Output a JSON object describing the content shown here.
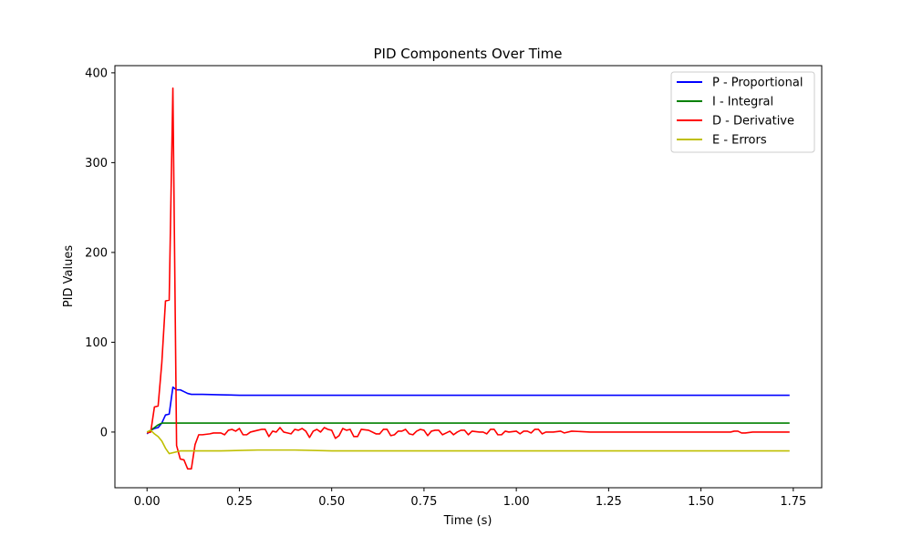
{
  "chart_data": {
    "type": "line",
    "title": "PID Components Over Time",
    "xlabel": "Time (s)",
    "ylabel": "PID Values",
    "xlim": [
      -0.087,
      1.827
    ],
    "ylim": [
      -62,
      408
    ],
    "xticks": [
      0.0,
      0.25,
      0.5,
      0.75,
      1.0,
      1.25,
      1.5,
      1.75
    ],
    "xtick_labels": [
      "0.00",
      "0.25",
      "0.50",
      "0.75",
      "1.00",
      "1.25",
      "1.50",
      "1.75"
    ],
    "yticks": [
      0,
      100,
      200,
      300,
      400
    ],
    "ytick_labels": [
      "0",
      "100",
      "200",
      "300",
      "400"
    ],
    "grid": false,
    "legend_position": "top-right",
    "series": [
      {
        "name": "P - Proportional",
        "color": "#0000ff",
        "points": [
          [
            0,
            -2
          ],
          [
            0.01,
            2
          ],
          [
            0.02,
            4
          ],
          [
            0.03,
            5
          ],
          [
            0.04,
            10
          ],
          [
            0.05,
            19
          ],
          [
            0.06,
            20
          ],
          [
            0.07,
            50
          ],
          [
            0.08,
            47
          ],
          [
            0.09,
            47
          ],
          [
            0.1,
            45
          ],
          [
            0.11,
            43
          ],
          [
            0.12,
            42
          ],
          [
            0.15,
            42
          ],
          [
            0.2,
            41.5
          ],
          [
            0.25,
            41
          ],
          [
            0.3,
            41
          ],
          [
            0.35,
            41
          ],
          [
            0.4,
            41
          ],
          [
            0.5,
            41
          ],
          [
            0.6,
            41
          ],
          [
            0.8,
            41
          ],
          [
            1.0,
            41
          ],
          [
            1.25,
            41
          ],
          [
            1.5,
            41
          ],
          [
            1.74,
            41
          ]
        ]
      },
      {
        "name": "I - Integral",
        "color": "#008000",
        "points": [
          [
            0,
            0
          ],
          [
            0.01,
            2
          ],
          [
            0.02,
            5
          ],
          [
            0.03,
            8
          ],
          [
            0.04,
            10
          ],
          [
            0.06,
            10
          ],
          [
            0.1,
            10
          ],
          [
            0.5,
            10
          ],
          [
            1.0,
            10
          ],
          [
            1.5,
            10
          ],
          [
            1.74,
            10
          ]
        ]
      },
      {
        "name": "D - Derivative",
        "color": "#ff0000",
        "points": [
          [
            0,
            -1
          ],
          [
            0.01,
            0
          ],
          [
            0.02,
            28
          ],
          [
            0.03,
            29
          ],
          [
            0.04,
            77
          ],
          [
            0.05,
            146
          ],
          [
            0.06,
            147
          ],
          [
            0.07,
            383
          ],
          [
            0.08,
            -15
          ],
          [
            0.09,
            -30
          ],
          [
            0.1,
            -31
          ],
          [
            0.11,
            -41
          ],
          [
            0.12,
            -41
          ],
          [
            0.13,
            -14
          ],
          [
            0.14,
            -3
          ],
          [
            0.15,
            -3
          ],
          [
            0.17,
            -2
          ],
          [
            0.18,
            -1
          ],
          [
            0.2,
            -1
          ],
          [
            0.21,
            -3
          ],
          [
            0.22,
            2
          ],
          [
            0.23,
            3
          ],
          [
            0.24,
            1
          ],
          [
            0.25,
            4
          ],
          [
            0.26,
            -3
          ],
          [
            0.27,
            -3
          ],
          [
            0.28,
            0
          ],
          [
            0.3,
            2
          ],
          [
            0.31,
            3
          ],
          [
            0.32,
            3
          ],
          [
            0.33,
            -5
          ],
          [
            0.34,
            1
          ],
          [
            0.35,
            0
          ],
          [
            0.36,
            5
          ],
          [
            0.37,
            0
          ],
          [
            0.38,
            -1
          ],
          [
            0.39,
            -2
          ],
          [
            0.4,
            3
          ],
          [
            0.41,
            2
          ],
          [
            0.42,
            4
          ],
          [
            0.43,
            1
          ],
          [
            0.44,
            -6
          ],
          [
            0.45,
            1
          ],
          [
            0.46,
            3
          ],
          [
            0.47,
            0
          ],
          [
            0.48,
            5
          ],
          [
            0.49,
            3
          ],
          [
            0.5,
            2
          ],
          [
            0.51,
            -7
          ],
          [
            0.52,
            -4
          ],
          [
            0.53,
            4
          ],
          [
            0.54,
            2
          ],
          [
            0.55,
            3
          ],
          [
            0.56,
            -5
          ],
          [
            0.57,
            -5
          ],
          [
            0.58,
            3
          ],
          [
            0.6,
            2
          ],
          [
            0.62,
            -2
          ],
          [
            0.63,
            -2
          ],
          [
            0.64,
            3
          ],
          [
            0.65,
            3
          ],
          [
            0.66,
            -4
          ],
          [
            0.67,
            -3
          ],
          [
            0.68,
            1
          ],
          [
            0.69,
            1
          ],
          [
            0.7,
            3
          ],
          [
            0.71,
            -2
          ],
          [
            0.72,
            -3
          ],
          [
            0.73,
            1
          ],
          [
            0.74,
            3
          ],
          [
            0.75,
            2
          ],
          [
            0.76,
            -4
          ],
          [
            0.77,
            1
          ],
          [
            0.78,
            2
          ],
          [
            0.79,
            2
          ],
          [
            0.8,
            -3
          ],
          [
            0.81,
            -1
          ],
          [
            0.82,
            1
          ],
          [
            0.83,
            -3
          ],
          [
            0.84,
            0
          ],
          [
            0.85,
            2
          ],
          [
            0.86,
            2
          ],
          [
            0.87,
            -3
          ],
          [
            0.88,
            1
          ],
          [
            0.9,
            0
          ],
          [
            0.91,
            0
          ],
          [
            0.92,
            -2
          ],
          [
            0.93,
            3
          ],
          [
            0.94,
            3
          ],
          [
            0.95,
            -3
          ],
          [
            0.96,
            -3
          ],
          [
            0.97,
            1
          ],
          [
            0.98,
            0
          ],
          [
            1.0,
            1
          ],
          [
            1.01,
            -2
          ],
          [
            1.02,
            1
          ],
          [
            1.03,
            1
          ],
          [
            1.04,
            -1
          ],
          [
            1.05,
            3
          ],
          [
            1.06,
            3
          ],
          [
            1.07,
            -2
          ],
          [
            1.08,
            0
          ],
          [
            1.1,
            0
          ],
          [
            1.12,
            1
          ],
          [
            1.13,
            -1
          ],
          [
            1.15,
            1
          ],
          [
            1.2,
            0
          ],
          [
            1.25,
            0
          ],
          [
            1.3,
            0
          ],
          [
            1.4,
            0
          ],
          [
            1.5,
            0
          ],
          [
            1.58,
            0
          ],
          [
            1.59,
            1
          ],
          [
            1.6,
            1
          ],
          [
            1.61,
            -1
          ],
          [
            1.62,
            -1
          ],
          [
            1.64,
            0
          ],
          [
            1.7,
            0
          ],
          [
            1.74,
            0
          ]
        ]
      },
      {
        "name": "E - Errors",
        "color": "#bfbf00",
        "points": [
          [
            0,
            0
          ],
          [
            0.01,
            2
          ],
          [
            0.02,
            -2
          ],
          [
            0.03,
            -5
          ],
          [
            0.04,
            -10
          ],
          [
            0.05,
            -18
          ],
          [
            0.06,
            -24
          ],
          [
            0.08,
            -22
          ],
          [
            0.09,
            -21
          ],
          [
            0.1,
            -21
          ],
          [
            0.15,
            -21
          ],
          [
            0.2,
            -21
          ],
          [
            0.3,
            -20
          ],
          [
            0.4,
            -20
          ],
          [
            0.5,
            -21
          ],
          [
            0.6,
            -21
          ],
          [
            0.8,
            -21
          ],
          [
            1.0,
            -21
          ],
          [
            1.25,
            -21
          ],
          [
            1.5,
            -21
          ],
          [
            1.74,
            -21
          ]
        ]
      }
    ]
  }
}
